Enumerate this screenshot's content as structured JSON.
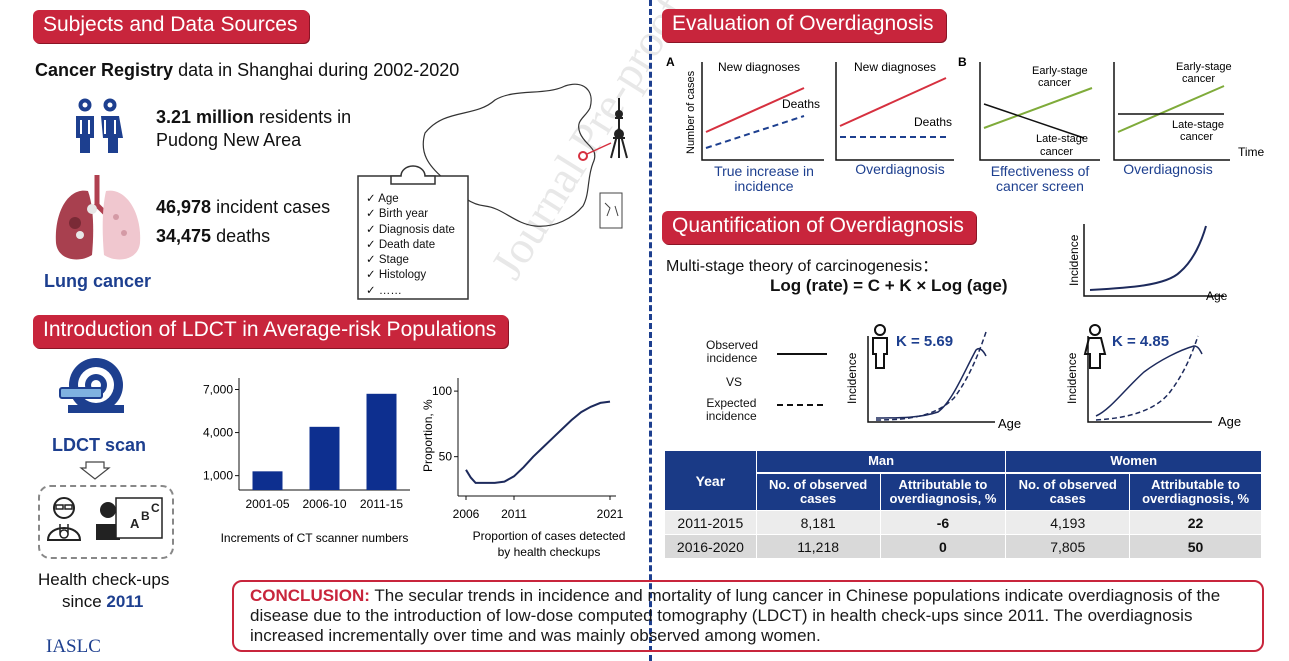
{
  "banners": {
    "subjects": "Subjects and Data Sources",
    "ldct": "Introduction of LDCT in Average-risk Populations",
    "evaluation": "Evaluation of Overdiagnosis",
    "quantification": "Quantification of Overdiagnosis"
  },
  "subjects": {
    "registry_bold": "Cancer Registry",
    "registry_rest": " data in Shanghai during 2002-2020",
    "residents_bold": "3.21 million",
    "residents_rest": " residents in",
    "residents_line2": "Pudong New Area",
    "cases_bold": "46,978",
    "cases_rest": " incident cases",
    "deaths_bold": "34,475",
    "deaths_rest": " deaths",
    "lung_label": "Lung cancer",
    "checklist": [
      "Age",
      "Birth year",
      "Diagnosis date",
      "Death date",
      "Stage",
      "Histology",
      "……"
    ]
  },
  "ldct": {
    "scan_label": "LDCT scan",
    "checkups_line1": "Health check-ups",
    "checkups_line2_pre": "since ",
    "checkups_year": "2011",
    "logo": "IASLC"
  },
  "chart_data": [
    {
      "type": "bar",
      "categories": [
        "2001-05",
        "2006-10",
        "2011-15"
      ],
      "values": [
        1300,
        4400,
        6700
      ],
      "yticks": [
        "1,000",
        "4,000",
        "7,000"
      ],
      "ytick_values": [
        1000,
        4000,
        7000
      ],
      "ylim": [
        0,
        7800
      ],
      "caption": "Increments of CT scanner numbers",
      "color": "#0d2f8f"
    },
    {
      "type": "line",
      "x": [
        2006,
        2006.5,
        2007,
        2008,
        2009,
        2010,
        2011,
        2012,
        2013,
        2014,
        2015,
        2016,
        2017,
        2018,
        2019,
        2020,
        2021
      ],
      "y": [
        40,
        34,
        30,
        30,
        30,
        31,
        35,
        42,
        50,
        57,
        64,
        71,
        78,
        84,
        88,
        91,
        92
      ],
      "xticks": [
        "2006",
        "2011",
        "2021"
      ],
      "xtick_values": [
        2006,
        2011,
        2021
      ],
      "yticks": [
        "50",
        "100"
      ],
      "ytick_values": [
        50,
        100
      ],
      "ylim": [
        20,
        110
      ],
      "ylabel": "Proportion, %",
      "caption_line1": "Proportion of cases detected",
      "caption_line2": "by health checkups",
      "color": "#1d2a5c"
    }
  ],
  "evaluation": {
    "label_a": "A",
    "label_b": "B",
    "ylabel": "Number of cases",
    "time": "Time",
    "p1_new": "New diagnoses",
    "p1_deaths": "Deaths",
    "p1_caption1": "True increase in",
    "p1_caption2": "incidence",
    "p2_new": "New diagnoses",
    "p2_deaths": "Deaths",
    "p2_caption": "Overdiagnosis",
    "p3_early1": "Early-stage",
    "p3_early2": "cancer",
    "p3_late1": "Late-stage",
    "p3_late2": "cancer",
    "p3_caption1": "Effectiveness of",
    "p3_caption2": "cancer screen",
    "p4_early1": "Early-stage",
    "p4_early2": "cancer",
    "p4_late1": "Late-stage",
    "p4_late2": "cancer",
    "p4_caption": "Overdiagnosis",
    "red": "#d6303f",
    "green": "#7fab3a",
    "navy": "#1d3f8f"
  },
  "quantification": {
    "theory": "Multi-stage theory of carcinogenesis：",
    "formula": "Log (rate) = C + K × Log (age)",
    "incidence": "Incidence",
    "age": "Age",
    "observed1": "Observed",
    "observed2": "incidence",
    "vs": "VS",
    "expected1": "Expected",
    "expected2": "incidence",
    "k_men": "K = 5.69",
    "k_women": "K = 4.85"
  },
  "table": {
    "year": "Year",
    "man": "Man",
    "women": "Women",
    "observed_header": "No. of observed cases",
    "attrib_header": "Attributable to overdiagnosis, %",
    "rows": [
      {
        "year": "2011-2015",
        "man_obs": "8,181",
        "man_attr": "-6",
        "women_obs": "4,193",
        "women_attr": "22"
      },
      {
        "year": "2016-2020",
        "man_obs": "11,218",
        "man_attr": "0",
        "women_obs": "7,805",
        "women_attr": "50"
      }
    ]
  },
  "conclusion": {
    "label": "CONCLUSION:",
    "text": " The secular trends in incidence and mortality of lung cancer in Chinese populations indicate overdiagnosis of the disease due to the introduction of low-dose computed tomography (LDCT) in health check-ups since 2011. The overdiagnosis increased incrementally over time and was mainly observed among women."
  },
  "watermark": "Journal Pre-proof"
}
